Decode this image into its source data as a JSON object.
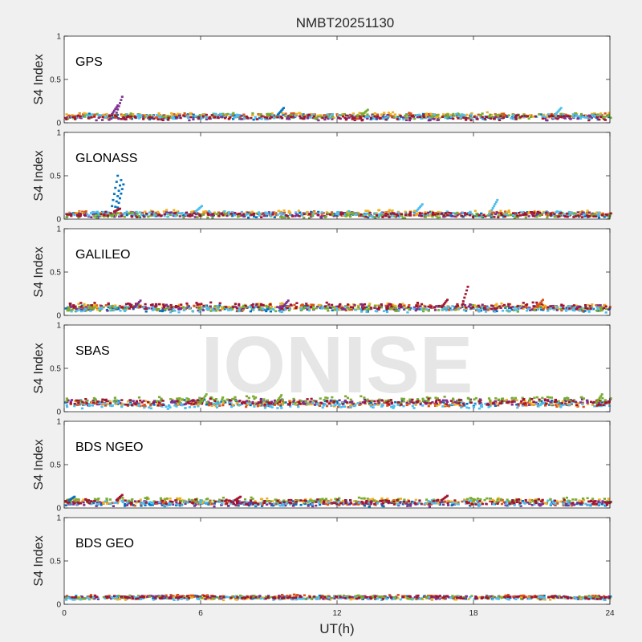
{
  "chart_data": {
    "type": "scatter",
    "title": "NMBT20251130",
    "xlabel": "UT(h)",
    "xlim": [
      0,
      24
    ],
    "xticks": [
      0,
      6,
      12,
      18,
      24
    ],
    "ylim": [
      0,
      1
    ],
    "yticks": [
      0,
      0.5,
      1
    ],
    "ytick_labels": [
      "0",
      "0.5",
      "1"
    ],
    "ylabel": "S4 Index",
    "watermark": "IONISE",
    "series_colors": [
      "#0072BD",
      "#D95319",
      "#EDB120",
      "#7E2F8E",
      "#77AC30",
      "#4DBEEE",
      "#A2142F"
    ],
    "panels": [
      {
        "label": "GPS",
        "baseline": [
          0.07,
          0.08,
          0.09,
          0.06,
          0.08,
          0.07,
          0.06
        ],
        "spread": 0.025,
        "spikes": [
          {
            "x": 2.5,
            "y": 0.3,
            "series": 3
          },
          {
            "x": 2.3,
            "y": 0.2,
            "series": 3
          },
          {
            "x": 9.6,
            "y": 0.17,
            "series": 0
          },
          {
            "x": 21.8,
            "y": 0.17,
            "series": 5
          },
          {
            "x": 13.3,
            "y": 0.15,
            "series": 4
          }
        ]
      },
      {
        "label": "GLONASS",
        "baseline": [
          0.05,
          0.06,
          0.07,
          0.05,
          0.04,
          0.06,
          0.05
        ],
        "spread": 0.025,
        "spikes": [
          {
            "x": 2.3,
            "y": 0.5,
            "series": 0
          },
          {
            "x": 2.45,
            "y": 0.45,
            "series": 0
          },
          {
            "x": 2.55,
            "y": 0.4,
            "series": 0
          },
          {
            "x": 19.0,
            "y": 0.22,
            "series": 5
          },
          {
            "x": 15.7,
            "y": 0.17,
            "series": 5
          },
          {
            "x": 2.4,
            "y": 0.12,
            "series": 6
          },
          {
            "x": 6.0,
            "y": 0.15,
            "series": 5
          }
        ]
      },
      {
        "label": "GALILEO",
        "baseline": [
          0.08,
          0.09,
          0.1,
          0.09,
          0.08,
          0.07,
          0.11
        ],
        "spread": 0.03,
        "spikes": [
          {
            "x": 17.7,
            "y": 0.33,
            "series": 6
          },
          {
            "x": 16.8,
            "y": 0.18,
            "series": 6
          },
          {
            "x": 3.3,
            "y": 0.17,
            "series": 3
          },
          {
            "x": 9.8,
            "y": 0.17,
            "series": 3
          },
          {
            "x": 21.0,
            "y": 0.18,
            "series": 1
          }
        ]
      },
      {
        "label": "SBAS",
        "baseline": [
          0.1,
          0.09,
          0.1,
          0.11,
          0.14,
          0.07,
          0.11
        ],
        "spread": 0.03,
        "spikes": [
          {
            "x": 6.2,
            "y": 0.2,
            "series": 4
          },
          {
            "x": 9.5,
            "y": 0.19,
            "series": 4
          },
          {
            "x": 23.6,
            "y": 0.2,
            "series": 4
          }
        ]
      },
      {
        "label": "BDS NGEO",
        "baseline": [
          0.05,
          0.06,
          0.08,
          0.05,
          0.09,
          0.06,
          0.07
        ],
        "spread": 0.025,
        "spikes": [
          {
            "x": 0.4,
            "y": 0.13,
            "series": 0
          },
          {
            "x": 2.5,
            "y": 0.15,
            "series": 6
          },
          {
            "x": 7.7,
            "y": 0.13,
            "series": 6
          },
          {
            "x": 16.8,
            "y": 0.14,
            "series": 6
          }
        ]
      },
      {
        "label": "BDS GEO",
        "baseline": [
          0.08,
          0.09,
          0.07,
          0.08,
          0.08,
          0.07,
          0.08
        ],
        "spread": 0.012,
        "spikes": []
      }
    ]
  }
}
